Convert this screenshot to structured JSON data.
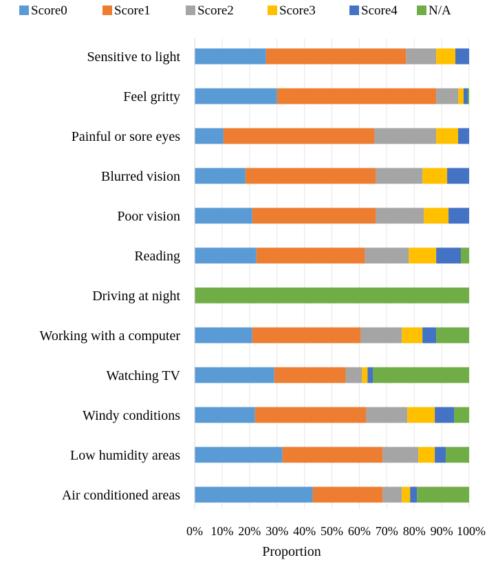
{
  "chart_data": {
    "type": "bar",
    "orientation": "horizontal",
    "stacked": true,
    "xlabel": "Proportion",
    "xlim": [
      0,
      100
    ],
    "xticks": [
      "0%",
      "10%",
      "20%",
      "30%",
      "40%",
      "50%",
      "60%",
      "70%",
      "80%",
      "90%",
      "100%"
    ],
    "categories": [
      "Sensitive to light",
      "Feel gritty",
      "Painful or sore eyes",
      "Blurred vision",
      "Poor vision",
      "Reading",
      "Driving at night",
      "Working with a computer",
      "Watching TV",
      "Windy conditions",
      "Low humidity areas",
      "Air conditioned areas"
    ],
    "series": [
      {
        "name": "Score0",
        "color": "#5B9BD5",
        "values": [
          26,
          30,
          10.5,
          18.5,
          21,
          22.5,
          0,
          21,
          29,
          22,
          32,
          43
        ]
      },
      {
        "name": "Score1",
        "color": "#ED7D31",
        "values": [
          51,
          58,
          55,
          47.5,
          45,
          39.5,
          0,
          39.5,
          26,
          40.5,
          36.5,
          25.5
        ]
      },
      {
        "name": "Score2",
        "color": "#A5A5A5",
        "values": [
          11,
          8,
          22.5,
          17,
          17.5,
          16,
          0,
          15,
          6,
          15,
          13,
          7
        ]
      },
      {
        "name": "Score3",
        "color": "#FFC000",
        "values": [
          7,
          2,
          8,
          9,
          9,
          10,
          0,
          7.5,
          2,
          10,
          6,
          3
        ]
      },
      {
        "name": "Score4",
        "color": "#4472C4",
        "values": [
          5,
          1.5,
          4,
          8,
          7.5,
          9,
          0,
          5,
          2,
          7,
          4,
          2.5
        ]
      },
      {
        "name": "N/A",
        "color": "#70AD47",
        "values": [
          0,
          0.5,
          0,
          0,
          0,
          3,
          100,
          12,
          35,
          5.5,
          8.5,
          19
        ]
      }
    ]
  }
}
